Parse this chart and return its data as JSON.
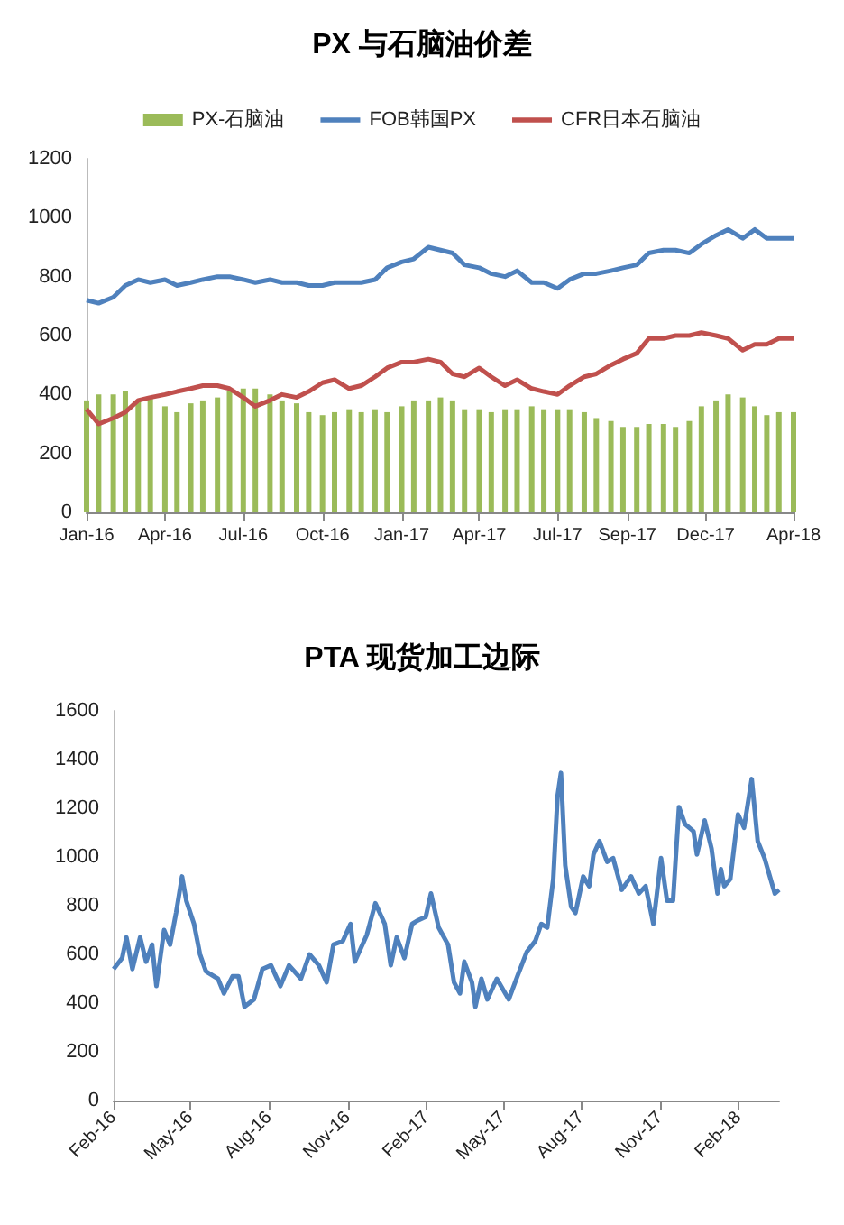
{
  "chart_data": [
    {
      "type": "bar",
      "title": "PX 与石脑油价差",
      "x": [
        "2016-01-01",
        "2016-01-15",
        "2016-02-01",
        "2016-02-15",
        "2016-03-01",
        "2016-03-15",
        "2016-04-01",
        "2016-04-15",
        "2016-05-01",
        "2016-05-15",
        "2016-06-01",
        "2016-06-15",
        "2016-07-01",
        "2016-07-15",
        "2016-08-01",
        "2016-08-15",
        "2016-09-01",
        "2016-09-15",
        "2016-10-01",
        "2016-10-15",
        "2016-11-01",
        "2016-11-15",
        "2016-12-01",
        "2016-12-15",
        "2017-01-01",
        "2017-01-15",
        "2017-02-01",
        "2017-02-15",
        "2017-03-01",
        "2017-03-15",
        "2017-04-01",
        "2017-04-15",
        "2017-05-01",
        "2017-05-15",
        "2017-06-01",
        "2017-06-15",
        "2017-07-01",
        "2017-07-15",
        "2017-08-01",
        "2017-08-15",
        "2017-09-01",
        "2017-09-15",
        "2017-10-01",
        "2017-10-15",
        "2017-11-01",
        "2017-11-15",
        "2017-12-01",
        "2017-12-15",
        "2018-01-01",
        "2018-01-15",
        "2018-02-01",
        "2018-02-15",
        "2018-03-01",
        "2018-03-15",
        "2018-04-01"
      ],
      "series": [
        {
          "name": "PX-石脑油",
          "color": "#9bbb59",
          "values": [
            380,
            400,
            400,
            410,
            380,
            390,
            360,
            340,
            370,
            380,
            390,
            410,
            420,
            420,
            400,
            380,
            370,
            340,
            330,
            340,
            350,
            340,
            350,
            340,
            360,
            380,
            380,
            390,
            380,
            350,
            350,
            340,
            350,
            350,
            360,
            350,
            350,
            350,
            340,
            320,
            310,
            290,
            290,
            300,
            300,
            290,
            310,
            360,
            380,
            400,
            390,
            360,
            330,
            340,
            340
          ]
        },
        {
          "name": "FOB韩国PX",
          "type": "line",
          "color": "#4f81bd",
          "values": [
            720,
            710,
            730,
            770,
            790,
            780,
            790,
            770,
            780,
            790,
            800,
            800,
            790,
            780,
            790,
            780,
            780,
            770,
            770,
            780,
            780,
            780,
            790,
            830,
            850,
            860,
            900,
            890,
            880,
            840,
            830,
            810,
            800,
            820,
            780,
            780,
            760,
            790,
            810,
            810,
            820,
            830,
            840,
            880,
            890,
            890,
            880,
            910,
            940,
            960,
            930,
            960,
            930,
            930,
            930
          ]
        },
        {
          "name": "CFR日本石脑油",
          "type": "line",
          "color": "#c0504d",
          "values": [
            350,
            300,
            320,
            340,
            380,
            390,
            400,
            410,
            420,
            430,
            430,
            420,
            390,
            360,
            380,
            400,
            390,
            410,
            440,
            450,
            420,
            430,
            460,
            490,
            510,
            510,
            520,
            510,
            470,
            460,
            490,
            460,
            430,
            450,
            420,
            410,
            400,
            430,
            460,
            470,
            500,
            520,
            540,
            590,
            590,
            600,
            600,
            610,
            600,
            590,
            550,
            570,
            570,
            590,
            590
          ]
        }
      ],
      "xlim": [
        "2016-01-01",
        "2018-04-01"
      ],
      "xticks": [
        {
          "value": "2016-01-01",
          "label": "Jan-16"
        },
        {
          "value": "2016-04-01",
          "label": "Apr-16"
        },
        {
          "value": "2016-07-01",
          "label": "Jul-16"
        },
        {
          "value": "2016-10-01",
          "label": "Oct-16"
        },
        {
          "value": "2017-01-01",
          "label": "Jan-17"
        },
        {
          "value": "2017-04-01",
          "label": "Apr-17"
        },
        {
          "value": "2017-07-01",
          "label": "Jul-17"
        },
        {
          "value": "2017-09-20",
          "label": "Sep-17"
        },
        {
          "value": "2017-12-20",
          "label": "Dec-17"
        },
        {
          "value": "2018-04-01",
          "label": "Apr-18"
        }
      ],
      "ylim": [
        0,
        1200
      ],
      "yticks": [
        0,
        200,
        400,
        600,
        800,
        1000,
        1200
      ],
      "grid": false,
      "legend": "top"
    },
    {
      "type": "line",
      "title": "PTA 现货加工边际",
      "x": [
        "2016-02-01",
        "2016-02-11",
        "2016-02-16",
        "2016-02-23",
        "2016-03-03",
        "2016-03-10",
        "2016-03-17",
        "2016-03-22",
        "2016-03-31",
        "2016-04-07",
        "2016-04-14",
        "2016-04-21",
        "2016-04-26",
        "2016-05-05",
        "2016-05-12",
        "2016-05-19",
        "2016-06-02",
        "2016-06-09",
        "2016-06-19",
        "2016-06-26",
        "2016-07-03",
        "2016-07-14",
        "2016-07-24",
        "2016-08-03",
        "2016-08-14",
        "2016-08-24",
        "2016-09-07",
        "2016-09-17",
        "2016-09-28",
        "2016-10-07",
        "2016-10-15",
        "2016-10-26",
        "2016-11-04",
        "2016-11-09",
        "2016-11-23",
        "2016-12-03",
        "2016-12-14",
        "2016-12-21",
        "2016-12-28",
        "2017-01-06",
        "2017-01-15",
        "2017-01-22",
        "2017-01-31",
        "2017-02-06",
        "2017-02-15",
        "2017-02-26",
        "2017-03-05",
        "2017-03-12",
        "2017-03-17",
        "2017-03-26",
        "2017-03-30",
        "2017-04-06",
        "2017-04-13",
        "2017-04-24",
        "2017-05-08",
        "2017-05-18",
        "2017-05-29",
        "2017-06-08",
        "2017-06-15",
        "2017-06-22",
        "2017-06-29",
        "2017-07-04",
        "2017-07-08",
        "2017-07-13",
        "2017-07-20",
        "2017-07-25",
        "2017-08-03",
        "2017-08-10",
        "2017-08-15",
        "2017-08-22",
        "2017-08-31",
        "2017-09-07",
        "2017-09-17",
        "2017-09-28",
        "2017-10-07",
        "2017-10-15",
        "2017-10-24",
        "2017-11-02",
        "2017-11-09",
        "2017-11-16",
        "2017-11-23",
        "2017-11-30",
        "2017-12-10",
        "2017-12-14",
        "2017-12-23",
        "2017-12-31",
        "2018-01-07",
        "2018-01-11",
        "2018-01-15",
        "2018-01-22",
        "2018-01-31",
        "2018-02-07",
        "2018-02-16",
        "2018-02-23",
        "2018-03-03",
        "2018-03-10",
        "2018-03-15",
        "2018-03-20"
      ],
      "series": [
        {
          "color": "#4f81bd",
          "values": [
            540,
            585,
            670,
            540,
            670,
            570,
            640,
            470,
            700,
            640,
            770,
            920,
            820,
            725,
            600,
            530,
            500,
            440,
            510,
            510,
            385,
            415,
            540,
            555,
            470,
            555,
            500,
            600,
            555,
            485,
            640,
            655,
            725,
            570,
            680,
            810,
            725,
            555,
            670,
            585,
            725,
            740,
            755,
            850,
            710,
            640,
            485,
            440,
            570,
            485,
            385,
            500,
            415,
            500,
            415,
            510,
            610,
            655,
            725,
            710,
            910,
            1250,
            1345,
            965,
            795,
            770,
            920,
            880,
            1010,
            1065,
            980,
            995,
            865,
            920,
            850,
            880,
            725,
            995,
            820,
            820,
            1205,
            1135,
            1105,
            1010,
            1150,
            1035,
            850,
            950,
            880,
            910,
            1175,
            1120,
            1320,
            1065,
            995,
            910,
            850,
            865
          ]
        }
      ],
      "xlim": [
        "2016-02-01",
        "2018-03-20"
      ],
      "xticks": [
        {
          "value": "2016-02-01",
          "label": "Feb-16"
        },
        {
          "value": "2016-05-01",
          "label": "May-16"
        },
        {
          "value": "2016-08-01",
          "label": "Aug-16"
        },
        {
          "value": "2016-11-01",
          "label": "Nov-16"
        },
        {
          "value": "2017-02-01",
          "label": "Feb-17"
        },
        {
          "value": "2017-05-01",
          "label": "May-17"
        },
        {
          "value": "2017-08-01",
          "label": "Aug-17"
        },
        {
          "value": "2017-11-01",
          "label": "Nov-17"
        },
        {
          "value": "2018-02-01",
          "label": "Feb-18"
        }
      ],
      "ylim": [
        0,
        1600
      ],
      "yticks": [
        0,
        200,
        400,
        600,
        800,
        1000,
        1200,
        1400,
        1600
      ],
      "grid": false
    }
  ]
}
